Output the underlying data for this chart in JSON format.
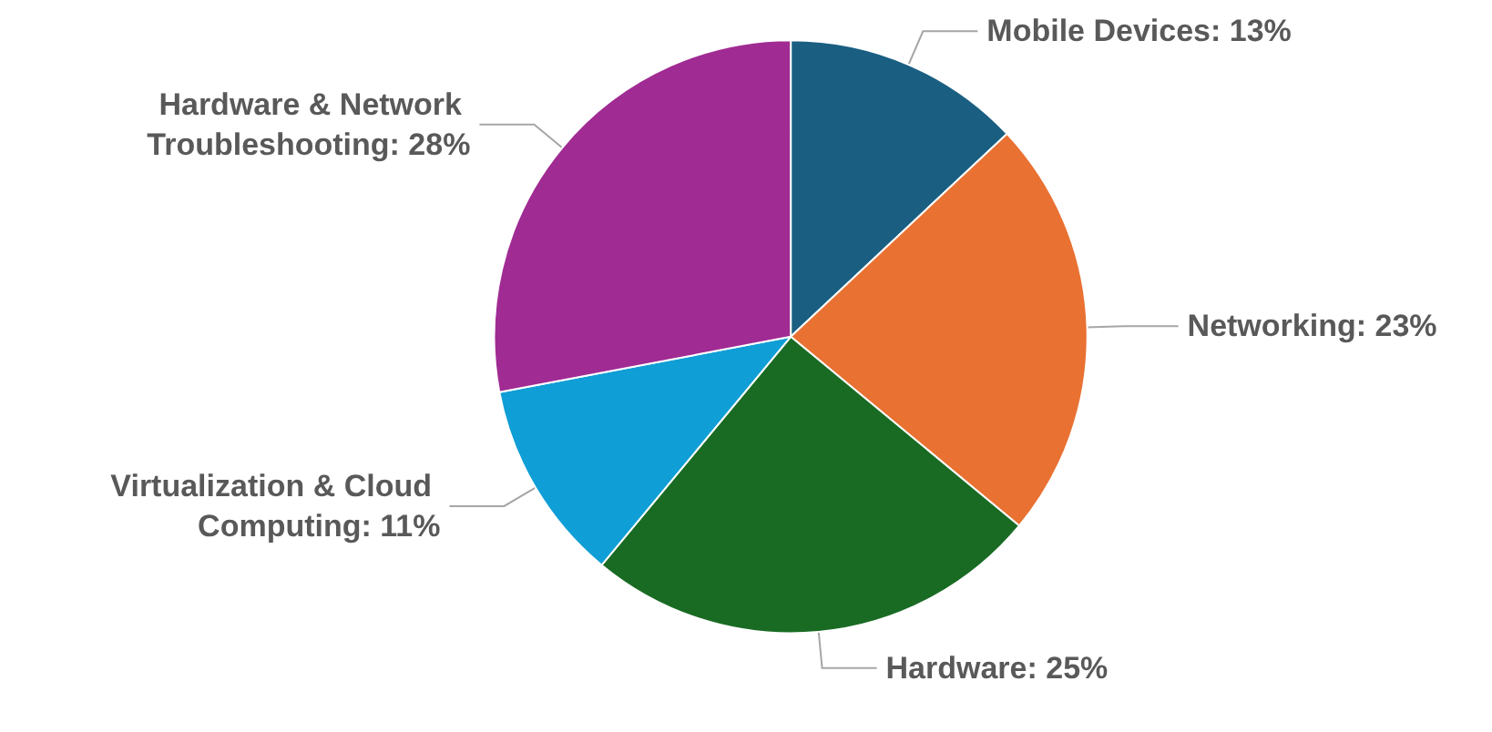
{
  "chart_data": {
    "type": "pie",
    "categories": [
      "Mobile Devices",
      "Networking",
      "Hardware",
      "Virtualization & Cloud Computing",
      "Hardware & Network Troubleshooting"
    ],
    "values": [
      13,
      23,
      25,
      11,
      28
    ],
    "value_labels": [
      "13%",
      "23%",
      "25%",
      "11%",
      "28%"
    ],
    "colors": [
      "#1a5f82",
      "#e97132",
      "#196b24",
      "#0f9ed5",
      "#a02b93"
    ],
    "legend": false
  }
}
